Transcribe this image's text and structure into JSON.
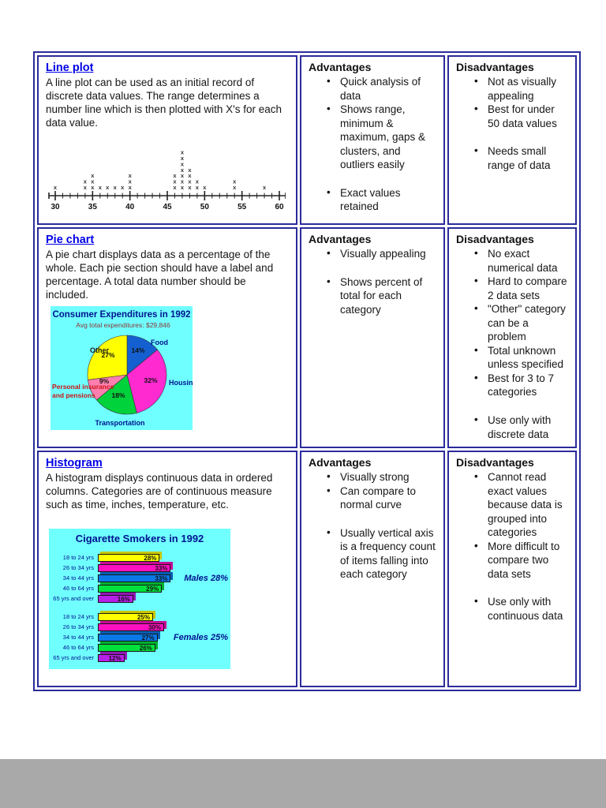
{
  "colors": {
    "table_border": "#2b2b9c",
    "link_blue": "#0000e6",
    "figure_background_cyan": "#70ffff",
    "figure_text_navy": "#00128f"
  },
  "table": {
    "rows": [
      {
        "id": "line-plot",
        "title": "Line plot",
        "description": "A line plot can be used as an initial record of discrete data values. The range determines a number line which is then plotted with X's for each data value.",
        "advantages": {
          "heading": "Advantages",
          "items": [
            {
              "text": "Quick analysis of data",
              "gap": false
            },
            {
              "text": "Shows range, minimum & maximum, gaps & clusters, and outliers easily",
              "gap": false
            },
            {
              "text": "Exact values retained",
              "gap": true
            }
          ]
        },
        "disadvantages": {
          "heading": "Disadvantages",
          "items": [
            {
              "text": "Not as visually appealing",
              "gap": false
            },
            {
              "text": "Best for under 50 data values",
              "gap": false
            },
            {
              "text": "Needs small range of data",
              "gap": true
            }
          ]
        }
      },
      {
        "id": "pie-chart",
        "title": "Pie chart",
        "description": "A pie chart displays data as a percentage of the whole. Each pie section should have a label and percentage. A total data number should be included.",
        "advantages": {
          "heading": "Advantages",
          "items": [
            {
              "text": "Visually appealing",
              "gap": false
            },
            {
              "text": "Shows percent of total for each category",
              "gap": true
            }
          ]
        },
        "disadvantages": {
          "heading": "Disadvantages",
          "items": [
            {
              "text": "No exact numerical data",
              "gap": false
            },
            {
              "text": "Hard to compare 2 data sets",
              "gap": false
            },
            {
              "text": "\"Other\" category can be a problem",
              "gap": false
            },
            {
              "text": "Total unknown unless specified",
              "gap": false
            },
            {
              "text": "Best for 3 to 7 categories",
              "gap": false
            },
            {
              "text": "Use only with discrete data",
              "gap": true
            }
          ]
        }
      },
      {
        "id": "histogram",
        "title": "Histogram",
        "description": "A histogram displays continuous data in ordered columns. Categories are of continuous measure such as time, inches, temperature, etc.",
        "advantages": {
          "heading": "Advantages",
          "items": [
            {
              "text": "Visually strong",
              "gap": false
            },
            {
              "text": "Can compare to normal curve",
              "gap": false
            },
            {
              "text": "Usually vertical axis is a frequency count of items falling into each category",
              "gap": true
            }
          ]
        },
        "disadvantages": {
          "heading": "Disadvantages",
          "items": [
            {
              "text": "Cannot read exact values because data is grouped into categories",
              "gap": false
            },
            {
              "text": "More difficult to compare two data sets",
              "gap": false
            },
            {
              "text": "Use only with continuous data",
              "gap": true
            }
          ]
        }
      }
    ]
  },
  "chart_data": [
    {
      "type": "scatter",
      "subtype": "line-plot",
      "marker": "x",
      "axis_min": 30,
      "axis_max": 60,
      "major_ticks": [
        30,
        35,
        40,
        45,
        50,
        55,
        60
      ],
      "points": {
        "30": 1,
        "34": 2,
        "35": 3,
        "36": 1,
        "37": 1,
        "38": 1,
        "39": 1,
        "40": 3,
        "46": 3,
        "47": 7,
        "48": 4,
        "49": 2,
        "50": 1,
        "54": 2,
        "58": 1
      }
    },
    {
      "type": "pie",
      "title": "Consumer Expenditures in 1992",
      "subtitle": "Avg total expenditures: $29,846",
      "background": "#70ffff",
      "slices": [
        {
          "label": "Food",
          "value": 14,
          "color": "#1560d0",
          "label_color": "#00128f"
        },
        {
          "label": "Housing",
          "value": 32,
          "color": "#ff2ad0",
          "label_color": "#00128f"
        },
        {
          "label": "Transportation",
          "value": 18,
          "color": "#00d23c",
          "label_color": "#00128f"
        },
        {
          "label": "Personal insurance and pensions",
          "label_lines": [
            "Personal insurance",
            "and pensions"
          ],
          "value": 9,
          "color": "#ff7fae",
          "label_color": "#cc1111"
        },
        {
          "label": "Other",
          "value": 27,
          "color": "#ffff00",
          "label_color": "#1a1a1a"
        }
      ]
    },
    {
      "type": "bar",
      "title": "Cigarette Smokers in 1992",
      "background": "#70ffff",
      "categories": [
        "18 to 24 yrs",
        "26 to 34 yrs",
        "34 to 44 yrs",
        "46 to 64 yrs",
        "65 yrs and over"
      ],
      "series": [
        {
          "name": "Males 28%",
          "values": [
            28,
            33,
            33,
            29,
            16
          ]
        },
        {
          "name": "Females 25%",
          "values": [
            25,
            30,
            27,
            26,
            12
          ]
        }
      ],
      "value_suffix": "%",
      "bar_colors": [
        "#ffff00",
        "#ff0fc0",
        "#0a78e6",
        "#00e13c",
        "#b81fe8"
      ],
      "xlim": [
        0,
        35
      ]
    }
  ]
}
